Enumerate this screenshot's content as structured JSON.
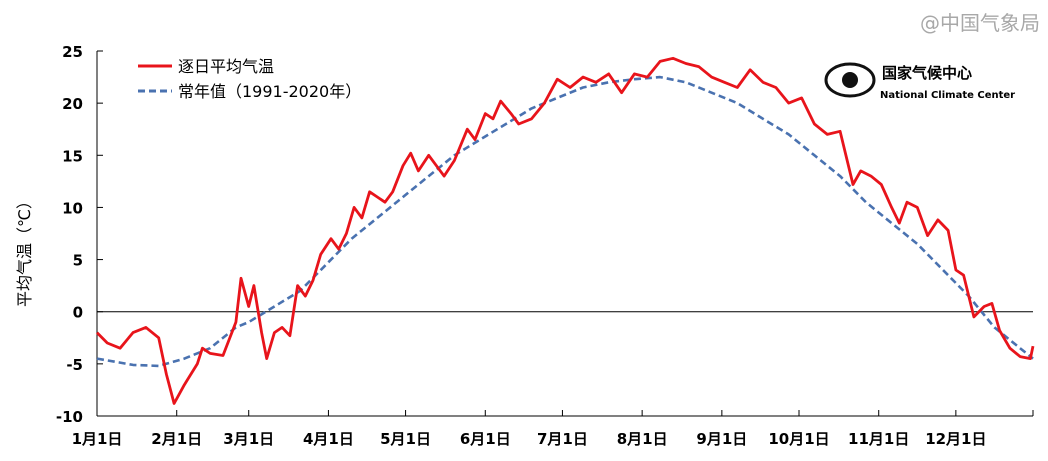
{
  "chart_data": {
    "type": "line",
    "title": "",
    "xlabel": "",
    "ylabel": "平均气温（℃）",
    "ylim": [
      -10,
      25
    ],
    "yticks": [
      -10,
      -5,
      0,
      5,
      10,
      15,
      20,
      25
    ],
    "xticks": [
      "1月1日",
      "2月1日",
      "3月1日",
      "4月1日",
      "5月1日",
      "6月1日",
      "7月1日",
      "8月1日",
      "9月1日",
      "10月1日",
      "11月1日",
      "12月1日"
    ],
    "xtick_days": [
      1,
      32,
      60,
      91,
      121,
      152,
      182,
      213,
      244,
      274,
      305,
      335
    ],
    "xlim_days": [
      1,
      365
    ],
    "grid": false,
    "legend_position": "top-left",
    "series": [
      {
        "name": "逐日平均气温",
        "color": "#e8141b",
        "style": "solid",
        "x": [
          1,
          5,
          10,
          15,
          20,
          25,
          28,
          31,
          35,
          40,
          42,
          45,
          50,
          55,
          57,
          60,
          62,
          65,
          67,
          70,
          73,
          76,
          79,
          82,
          85,
          88,
          92,
          95,
          98,
          101,
          104,
          107,
          110,
          113,
          116,
          120,
          123,
          126,
          130,
          133,
          136,
          140,
          145,
          148,
          152,
          155,
          158,
          162,
          165,
          170,
          175,
          180,
          185,
          190,
          195,
          200,
          205,
          210,
          215,
          220,
          225,
          230,
          235,
          240,
          245,
          250,
          255,
          260,
          265,
          270,
          275,
          280,
          285,
          290,
          295,
          298,
          302,
          306,
          310,
          313,
          316,
          320,
          324,
          328,
          332,
          335,
          338,
          342,
          346,
          349,
          352,
          356,
          360,
          364,
          365
        ],
        "y": [
          -2,
          -3,
          -3.5,
          -2,
          -1.5,
          -2.5,
          -6,
          -8.8,
          -7,
          -5,
          -3.5,
          -4,
          -4.2,
          -1,
          3.2,
          0.5,
          2.5,
          -2,
          -4.5,
          -2,
          -1.5,
          -2.3,
          2.5,
          1.5,
          3,
          5.5,
          7,
          6,
          7.5,
          10,
          9,
          11.5,
          11,
          10.5,
          11.5,
          14,
          15.2,
          13.5,
          15,
          14,
          13,
          14.5,
          17.5,
          16.5,
          19,
          18.5,
          20.2,
          19,
          18,
          18.5,
          20,
          22.3,
          21.5,
          22.5,
          22,
          22.8,
          21,
          22.8,
          22.5,
          24,
          24.3,
          23.8,
          23.5,
          22.5,
          22,
          21.5,
          23.2,
          22,
          21.5,
          20,
          20.5,
          18,
          17,
          17.3,
          12.2,
          13.5,
          13,
          12.2,
          10,
          8.5,
          10.5,
          10,
          7.3,
          8.8,
          7.8,
          4,
          3.5,
          -0.5,
          0.5,
          0.8,
          -1.8,
          -3.5,
          -4.3,
          -4.5,
          -3.3
        ]
      },
      {
        "name": "常年值（1991-2020年）",
        "color": "#4a72b0",
        "style": "dashed",
        "x": [
          1,
          15,
          25,
          35,
          45,
          55,
          60,
          70,
          80,
          90,
          100,
          110,
          120,
          130,
          140,
          150,
          160,
          170,
          180,
          190,
          200,
          210,
          220,
          230,
          240,
          250,
          260,
          270,
          280,
          290,
          300,
          310,
          320,
          330,
          340,
          350,
          360,
          365
        ],
        "y": [
          -4.5,
          -5.1,
          -5.2,
          -4.5,
          -3.5,
          -1.5,
          -1,
          0.5,
          2,
          4.5,
          7,
          9,
          11,
          13,
          15,
          16.5,
          18,
          19.5,
          20.5,
          21.5,
          22,
          22.3,
          22.5,
          22,
          21,
          20,
          18.5,
          17,
          15,
          13,
          10.5,
          8.5,
          6.5,
          4,
          1.5,
          -1.5,
          -3.5,
          -4.5
        ]
      }
    ]
  },
  "logo": {
    "name_cn": "国家气候中心",
    "name_en": "National Climate Center"
  },
  "watermark": "@中国气象局"
}
